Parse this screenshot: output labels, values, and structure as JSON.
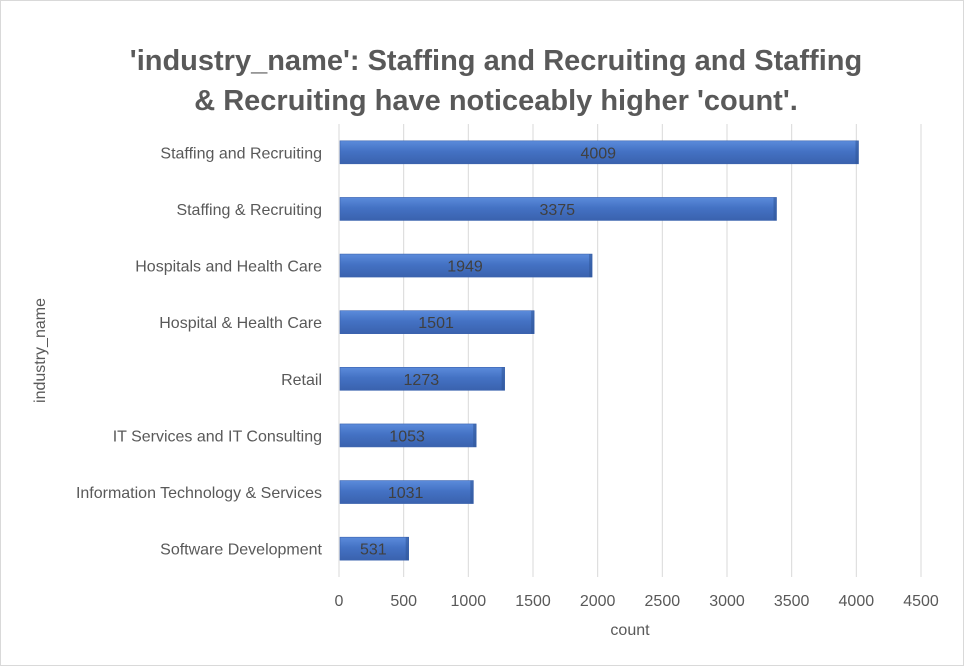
{
  "chart_data": {
    "type": "bar",
    "orientation": "horizontal",
    "title_line1": "'industry_name': Staffing and Recruiting and Staffing",
    "title_line2": "& Recruiting have noticeably higher 'count'.",
    "xlabel": "count",
    "ylabel": "industry_name",
    "categories": [
      "Staffing and Recruiting",
      "Staffing & Recruiting",
      "Hospitals and Health Care",
      "Hospital & Health Care",
      "Retail",
      "IT Services and IT Consulting",
      "Information Technology & Services",
      "Software Development"
    ],
    "values": [
      4009,
      3375,
      1949,
      1501,
      1273,
      1053,
      1031,
      531
    ],
    "xlim": [
      0,
      4500
    ],
    "xticks": [
      0,
      500,
      1000,
      1500,
      2000,
      2500,
      3000,
      3500,
      4000,
      4500
    ],
    "grid": true,
    "legend": "none",
    "colors": {
      "bar": "#4472C4",
      "bar_dark": "#3A62AE",
      "grid": "#d9d9d9"
    }
  }
}
